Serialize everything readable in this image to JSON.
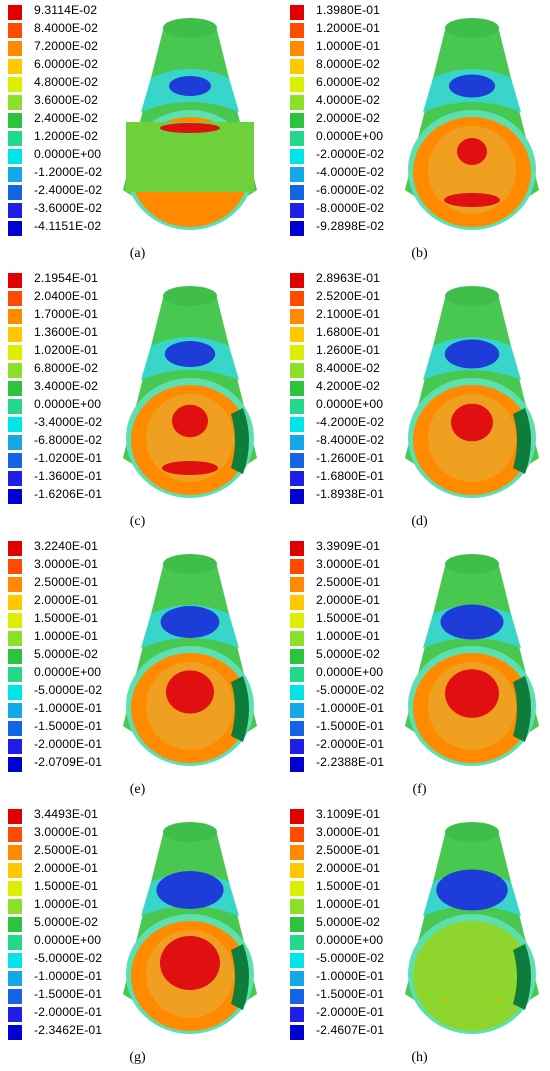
{
  "panels": [
    {
      "caption": "(a)",
      "values": [
        "9.3114E-02",
        "8.4000E-02",
        "7.2000E-02",
        "6.0000E-02",
        "4.8000E-02",
        "3.6000E-02",
        "2.4000E-02",
        "1.2000E-02",
        "0.0000E+00",
        "-1.2000E-02",
        "-2.4000E-02",
        "-3.6000E-02",
        "-4.1151E-02"
      ]
    },
    {
      "caption": "(b)",
      "values": [
        "1.3980E-01",
        "1.2000E-01",
        "1.0000E-01",
        "8.0000E-02",
        "6.0000E-02",
        "4.0000E-02",
        "2.0000E-02",
        "0.0000E+00",
        "-2.0000E-02",
        "-4.0000E-02",
        "-6.0000E-02",
        "-8.0000E-02",
        "-9.2898E-02"
      ]
    },
    {
      "caption": "(c)",
      "values": [
        "2.1954E-01",
        "2.0400E-01",
        "1.7000E-01",
        "1.3600E-01",
        "1.0200E-01",
        "6.8000E-02",
        "3.4000E-02",
        "0.0000E+00",
        "-3.4000E-02",
        "-6.8000E-02",
        "-1.0200E-01",
        "-1.3600E-01",
        "-1.6206E-01"
      ]
    },
    {
      "caption": "(d)",
      "values": [
        "2.8963E-01",
        "2.5200E-01",
        "2.1000E-01",
        "1.6800E-01",
        "1.2600E-01",
        "8.4000E-02",
        "4.2000E-02",
        "0.0000E+00",
        "-4.2000E-02",
        "-8.4000E-02",
        "-1.2600E-01",
        "-1.6800E-01",
        "-1.8938E-01"
      ]
    },
    {
      "caption": "(e)",
      "values": [
        "3.2240E-01",
        "3.0000E-01",
        "2.5000E-01",
        "2.0000E-01",
        "1.5000E-01",
        "1.0000E-01",
        "5.0000E-02",
        "0.0000E+00",
        "-5.0000E-02",
        "-1.0000E-01",
        "-1.5000E-01",
        "-2.0000E-01",
        "-2.0709E-01"
      ]
    },
    {
      "caption": "(f)",
      "values": [
        "3.3909E-01",
        "3.0000E-01",
        "2.5000E-01",
        "2.0000E-01",
        "1.5000E-01",
        "1.0000E-01",
        "5.0000E-02",
        "0.0000E+00",
        "-5.0000E-02",
        "-1.0000E-01",
        "-1.5000E-01",
        "-2.0000E-01",
        "-2.2388E-01"
      ]
    },
    {
      "caption": "(g)",
      "values": [
        "3.4493E-01",
        "3.0000E-01",
        "2.5000E-01",
        "2.0000E-01",
        "1.5000E-01",
        "1.0000E-01",
        "5.0000E-02",
        "0.0000E+00",
        "-5.0000E-02",
        "-1.0000E-01",
        "-1.5000E-01",
        "-2.0000E-01",
        "-2.3462E-01"
      ]
    },
    {
      "caption": "(h)",
      "values": [
        "3.1009E-01",
        "3.0000E-01",
        "2.5000E-01",
        "2.0000E-01",
        "1.5000E-01",
        "1.0000E-01",
        "5.0000E-02",
        "0.0000E+00",
        "-5.0000E-02",
        "-1.0000E-01",
        "-1.5000E-01",
        "-2.0000E-01",
        "-2.4607E-01"
      ]
    }
  ],
  "legend_colors": [
    "#e00000",
    "#ff4a00",
    "#ff8a00",
    "#ffc800",
    "#dcef00",
    "#8be02a",
    "#2ec33c",
    "#22d88a",
    "#00e6e6",
    "#14a8e6",
    "#1464e6",
    "#1e1ee6",
    "#0000d2"
  ],
  "surface_colors": {
    "shell": "#48c850",
    "rim": "#5ce0b0",
    "band_dark": "#1e3cd8",
    "band_light": "#38d6c8",
    "hot": "#e01010",
    "warm": "#ff8a00",
    "orange": "#f0a020",
    "inner": "#8ed62e",
    "dark_side": "#0e7d3c"
  }
}
